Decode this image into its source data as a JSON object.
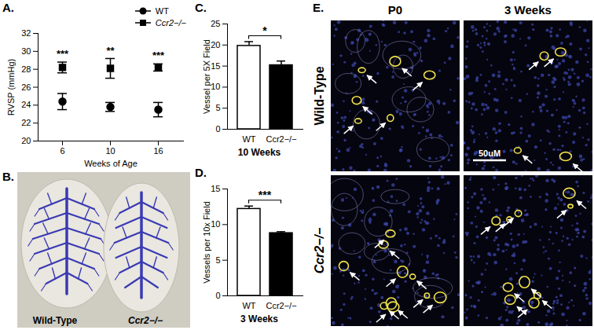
{
  "chart_data": [
    {
      "panel": "A.",
      "type": "scatter",
      "categories": [
        "6",
        "10",
        "16"
      ],
      "x_label": "Weeks of Age",
      "y_label": "RVSP (mmHg)",
      "ylim": [
        20,
        32
      ],
      "yticks": [
        20,
        22,
        24,
        26,
        28,
        30,
        32
      ],
      "legend": "top-right",
      "series": [
        {
          "name": "WT",
          "color": "#000000",
          "marker": "circle",
          "values": [
            24.4,
            23.8,
            23.5
          ],
          "errors": [
            0.9,
            0.5,
            0.8
          ]
        },
        {
          "name": "Ccr2−/−",
          "color": "#000000",
          "marker": "square",
          "values": [
            28.2,
            28.1,
            28.2
          ],
          "errors": [
            0.6,
            1.1,
            0.4
          ]
        }
      ],
      "annotations": [
        "***",
        "**",
        "***"
      ]
    },
    {
      "panel": "C.",
      "type": "bar",
      "categories": [
        "WT",
        "Ccr2−/−"
      ],
      "values": [
        19.8,
        15.2
      ],
      "errors": [
        1.0,
        1.0
      ],
      "colors": [
        "#ffffff",
        "#000000"
      ],
      "y_label": "Vessel per 5X Field",
      "x_label": "10 Weeks",
      "ylim": [
        0,
        25
      ],
      "yticks": [
        0,
        5,
        10,
        15,
        20,
        25
      ],
      "annotation": "*"
    },
    {
      "panel": "D.",
      "type": "bar",
      "categories": [
        "WT",
        "Ccr2−/−"
      ],
      "values": [
        12.2,
        8.8
      ],
      "errors": [
        0.4,
        0.2
      ],
      "colors": [
        "#ffffff",
        "#000000"
      ],
      "y_label": "Vessels per 10x Field",
      "x_label": "3 Weeks",
      "ylim": [
        0,
        15
      ],
      "yticks": [
        0,
        5,
        10,
        15
      ],
      "annotation": "***"
    }
  ],
  "images": [
    {
      "panel": "B.",
      "labels": [
        "Wild-Type",
        "Ccr2−/−"
      ]
    },
    {
      "panel": "E.",
      "columns": [
        "P0",
        "3 Weeks"
      ],
      "rows": [
        "Wild-Type",
        "Ccr2−/−"
      ],
      "scale_bar": "50uM"
    }
  ]
}
